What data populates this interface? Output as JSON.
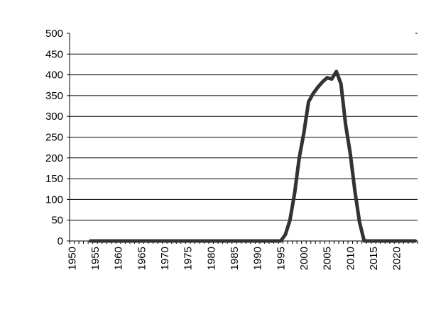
{
  "chart_data": {
    "type": "line",
    "title": "",
    "xlabel": "",
    "ylabel": "",
    "ylim": [
      0,
      500
    ],
    "yticks": [
      0,
      50,
      100,
      150,
      200,
      250,
      300,
      350,
      400,
      450,
      500
    ],
    "xrange": [
      1950,
      2024
    ],
    "xtick_labels": [
      "1950",
      "1955",
      "1960",
      "1965",
      "1970",
      "1975",
      "1980",
      "1985",
      "1990",
      "1995",
      "2000",
      "2005",
      "2010",
      "2015",
      "2020"
    ],
    "grid": "horizontal",
    "legend": "none",
    "line_color": "#333333",
    "series": [
      {
        "x": [
          1954,
          1955,
          1960,
          1965,
          1970,
          1975,
          1980,
          1985,
          1990,
          1995,
          1996,
          1997,
          1998,
          1999,
          2000,
          2001,
          2002,
          2003,
          2004,
          2005,
          2006,
          2007,
          2008,
          2009,
          2010,
          2011,
          2012,
          2013,
          2015,
          2020,
          2024
        ],
        "values": [
          0,
          0,
          0,
          0,
          0,
          0,
          0,
          0,
          0,
          0,
          15,
          50,
          115,
          200,
          260,
          335,
          355,
          370,
          383,
          393,
          390,
          408,
          378,
          280,
          210,
          120,
          45,
          0,
          0,
          0,
          0
        ]
      }
    ]
  }
}
